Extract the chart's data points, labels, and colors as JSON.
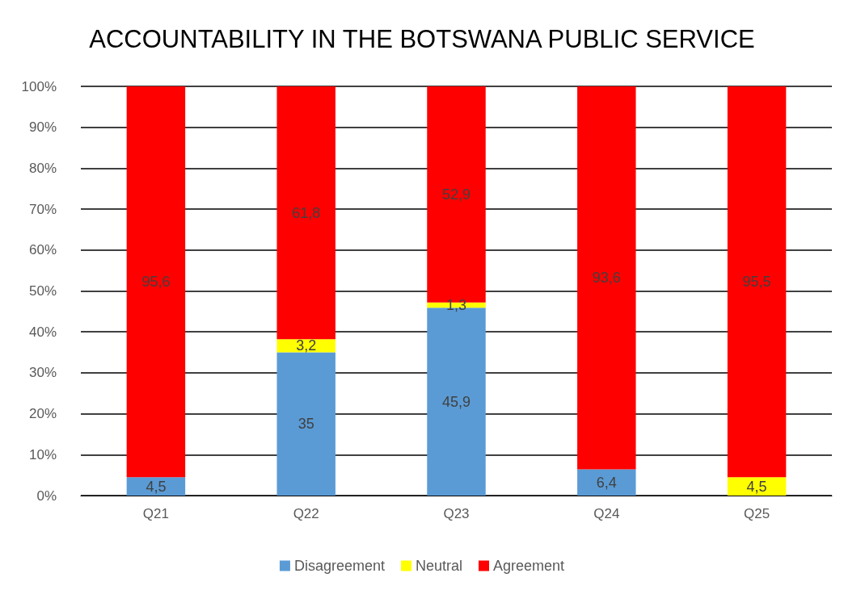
{
  "chart_data": {
    "type": "bar",
    "title": "ACCOUNTABILITY IN THE BOTSWANA PUBLIC SERVICE",
    "stacked": true,
    "categories": [
      "Q21",
      "Q22",
      "Q23",
      "Q24",
      "Q25"
    ],
    "series": [
      {
        "name": "Disagreement",
        "color": "#5b9bd5",
        "values": [
          4.5,
          35,
          45.9,
          6.4,
          null
        ],
        "value_labels": [
          "4,5",
          "35",
          "45,9",
          "6,4",
          null
        ]
      },
      {
        "name": "Neutral",
        "color": "#ffff00",
        "values": [
          null,
          3.2,
          1.3,
          null,
          4.5
        ],
        "value_labels": [
          null,
          "3,2",
          "1,3",
          null,
          "4,5"
        ]
      },
      {
        "name": "Agreement",
        "color": "#ff0000",
        "values": [
          95.6,
          61.8,
          52.9,
          93.6,
          95.5
        ],
        "value_labels": [
          "95,6",
          "61,8",
          "52,9",
          "93,6",
          "95,5"
        ]
      }
    ],
    "ylim": [
      0,
      100
    ],
    "yticks": [
      {
        "value": 0,
        "label": "0%"
      },
      {
        "value": 10,
        "label": "10%"
      },
      {
        "value": 20,
        "label": "20%"
      },
      {
        "value": 30,
        "label": "30%"
      },
      {
        "value": 40,
        "label": "40%"
      },
      {
        "value": 50,
        "label": "50%"
      },
      {
        "value": 60,
        "label": "60%"
      },
      {
        "value": 70,
        "label": "70%"
      },
      {
        "value": 80,
        "label": "80%"
      },
      {
        "value": 90,
        "label": "90%"
      },
      {
        "value": 100,
        "label": "100%"
      }
    ],
    "grid": "y",
    "legend": "bottom"
  }
}
